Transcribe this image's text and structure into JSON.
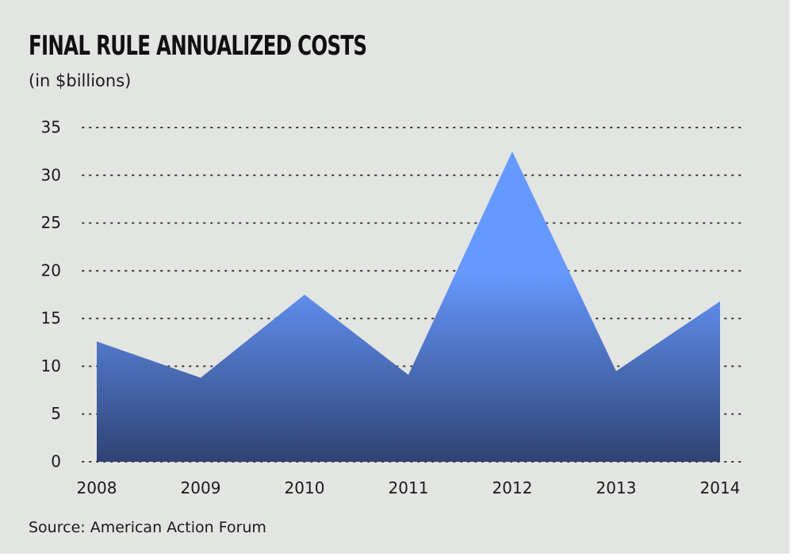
{
  "chart_data": {
    "type": "area",
    "title": "FINAL RULE ANNUALIZED COSTS",
    "subtitle": "(in $billions)",
    "source": "Source: American Action Forum",
    "x": [
      "2008",
      "2009",
      "2010",
      "2011",
      "2012",
      "2013",
      "2014"
    ],
    "series": [
      {
        "values": [
          12.6,
          8.8,
          17.5,
          9.1,
          32.5,
          9.5,
          16.8
        ]
      }
    ],
    "yticks": [
      0,
      5,
      10,
      15,
      20,
      25,
      30,
      35
    ],
    "ylim": [
      0,
      35
    ],
    "grid": true,
    "colors": {
      "fill_top": "#6699ff",
      "fill_bottom": "#2f4272",
      "grid": "#3a3a3a",
      "background": "#e3e5e2"
    }
  }
}
